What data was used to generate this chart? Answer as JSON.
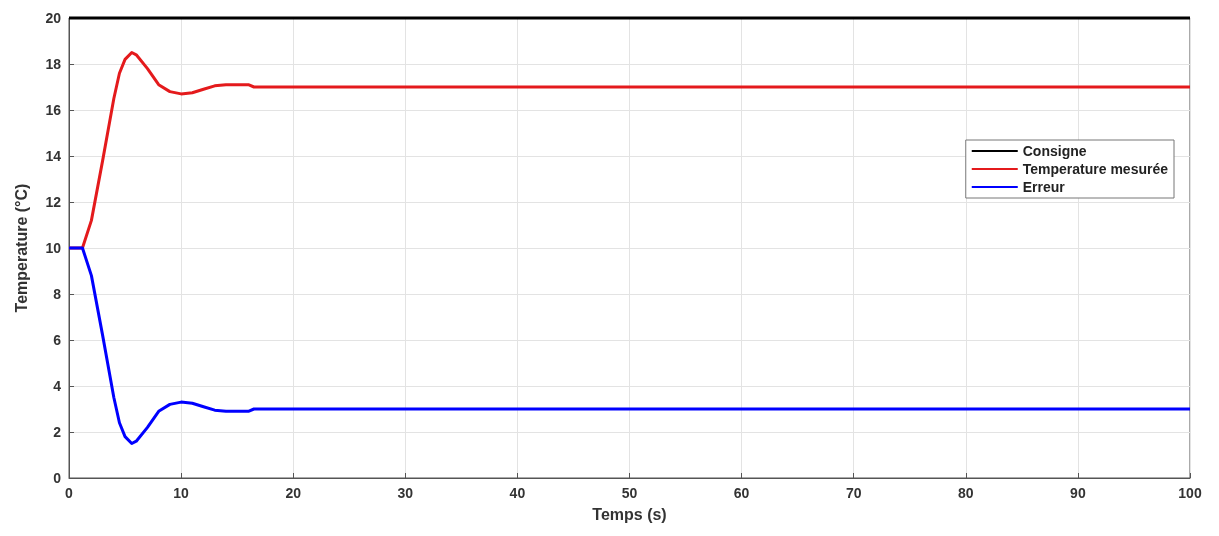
{
  "chart_data": {
    "type": "line",
    "xlabel": "Temps (s)",
    "ylabel": "Temperature (°C)",
    "x": [
      0,
      1,
      1.2,
      2,
      3,
      4,
      4.5,
      5,
      5.6,
      6,
      7,
      8,
      9,
      10,
      11,
      12,
      13,
      14,
      15,
      16,
      16.5,
      17,
      20,
      50,
      100
    ],
    "series": [
      {
        "name": "Consigne",
        "color": "#000000",
        "values": [
          20,
          20,
          20,
          20,
          20,
          20,
          20,
          20,
          20,
          20,
          20,
          20,
          20,
          20,
          20,
          20,
          20,
          20,
          20,
          20,
          20,
          20,
          20,
          20,
          20
        ]
      },
      {
        "name": "Temperature mesurée",
        "color": "#e41a1c",
        "values": [
          10,
          10,
          10,
          11.2,
          13.8,
          16.5,
          17.6,
          18.2,
          18.5,
          18.4,
          17.8,
          17.1,
          16.8,
          16.7,
          16.75,
          16.9,
          17.05,
          17.1,
          17.1,
          17.1,
          17,
          17,
          17,
          17,
          17
        ]
      },
      {
        "name": "Erreur",
        "color": "#0000ff",
        "values": [
          10,
          10,
          10,
          8.8,
          6.2,
          3.5,
          2.4,
          1.8,
          1.5,
          1.6,
          2.2,
          2.9,
          3.2,
          3.3,
          3.25,
          3.1,
          2.95,
          2.9,
          2.9,
          2.9,
          3,
          3,
          3,
          3,
          3
        ]
      }
    ],
    "xlim": [
      0,
      100
    ],
    "xticks": [
      0,
      10,
      20,
      30,
      40,
      50,
      60,
      70,
      80,
      90,
      100
    ],
    "ylim": [
      0,
      20
    ],
    "yticks": [
      0,
      2,
      4,
      6,
      8,
      10,
      12,
      14,
      16,
      18,
      20
    ],
    "grid": true,
    "legend": "right",
    "marker": "none",
    "line_style": "solid"
  }
}
